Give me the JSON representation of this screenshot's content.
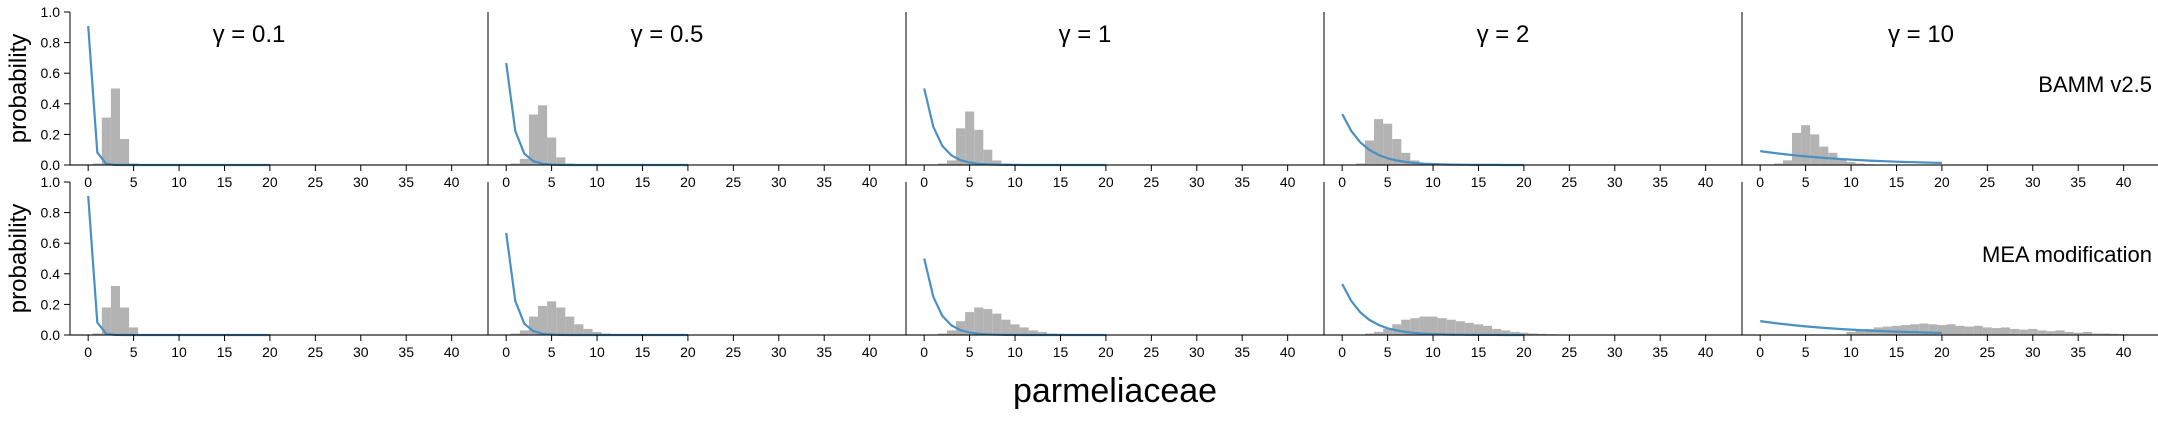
{
  "chart_data": {
    "type": "bar",
    "xlabel": "parmeliaceae",
    "ylabel": "probability",
    "xlim": [
      -2,
      44
    ],
    "ylim": [
      0,
      1
    ],
    "x_ticks": [
      0,
      5,
      10,
      15,
      20,
      25,
      30,
      35,
      40
    ],
    "y_ticks": [
      "0.0",
      "0.2",
      "0.4",
      "0.6",
      "0.8",
      "1.0"
    ],
    "columns": [
      {
        "label": "γ = 0.1",
        "gamma": 0.1
      },
      {
        "label": "γ = 0.5",
        "gamma": 0.5
      },
      {
        "label": "γ = 1",
        "gamma": 1
      },
      {
        "label": "γ = 2",
        "gamma": 2
      },
      {
        "label": "γ = 10",
        "gamma": 10
      }
    ],
    "rows": [
      {
        "label": "BAMM v2.5",
        "histograms": [
          {
            "x": [
              1,
              2,
              3,
              4,
              5
            ],
            "y": [
              0.01,
              0.31,
              0.5,
              0.17,
              0.01
            ]
          },
          {
            "x": [
              1,
              2,
              3,
              4,
              5,
              6,
              7,
              8
            ],
            "y": [
              0.01,
              0.04,
              0.33,
              0.39,
              0.18,
              0.05,
              0.01,
              0.005
            ]
          },
          {
            "x": [
              2,
              3,
              4,
              5,
              6,
              7,
              8,
              9,
              10
            ],
            "y": [
              0.01,
              0.03,
              0.24,
              0.35,
              0.23,
              0.1,
              0.03,
              0.01,
              0.005
            ]
          },
          {
            "x": [
              2,
              3,
              4,
              5,
              6,
              7,
              8,
              9,
              10,
              11
            ],
            "y": [
              0.01,
              0.16,
              0.3,
              0.27,
              0.17,
              0.08,
              0.03,
              0.01,
              0.005,
              0.003
            ]
          },
          {
            "x": [
              2,
              3,
              4,
              5,
              6,
              7,
              8,
              9,
              10,
              11,
              12
            ],
            "y": [
              0.01,
              0.03,
              0.21,
              0.26,
              0.2,
              0.12,
              0.08,
              0.04,
              0.02,
              0.01,
              0.005
            ]
          }
        ]
      },
      {
        "label": "MEA modification",
        "histograms": [
          {
            "x": [
              1,
              2,
              3,
              4,
              5
            ],
            "y": [
              0.01,
              0.18,
              0.32,
              0.18,
              0.05
            ]
          },
          {
            "x": [
              1,
              2,
              3,
              4,
              5,
              6,
              7,
              8,
              9,
              10,
              11,
              12,
              13
            ],
            "y": [
              0.01,
              0.03,
              0.12,
              0.19,
              0.22,
              0.18,
              0.12,
              0.07,
              0.04,
              0.02,
              0.01,
              0.005,
              0.003
            ]
          },
          {
            "x": [
              2,
              3,
              4,
              5,
              6,
              7,
              8,
              9,
              10,
              11,
              12,
              13,
              14,
              15,
              16,
              17
            ],
            "y": [
              0.01,
              0.03,
              0.09,
              0.15,
              0.18,
              0.17,
              0.14,
              0.1,
              0.07,
              0.05,
              0.03,
              0.02,
              0.01,
              0.008,
              0.005,
              0.003
            ]
          },
          {
            "x": [
              3,
              4,
              5,
              6,
              7,
              8,
              9,
              10,
              11,
              12,
              13,
              14,
              15,
              16,
              17,
              18,
              19,
              20,
              21,
              22,
              23,
              24
            ],
            "y": [
              0.01,
              0.02,
              0.04,
              0.07,
              0.1,
              0.11,
              0.12,
              0.12,
              0.11,
              0.1,
              0.09,
              0.08,
              0.07,
              0.06,
              0.04,
              0.03,
              0.02,
              0.015,
              0.01,
              0.008,
              0.005,
              0.003
            ]
          },
          {
            "x": [
              10,
              11,
              12,
              13,
              14,
              15,
              16,
              17,
              18,
              19,
              20,
              21,
              22,
              23,
              24,
              25,
              26,
              27,
              28,
              29,
              30,
              31,
              32,
              33,
              34,
              35,
              36,
              37,
              38,
              39,
              40
            ],
            "y": [
              0.02,
              0.03,
              0.04,
              0.05,
              0.055,
              0.06,
              0.065,
              0.07,
              0.075,
              0.07,
              0.065,
              0.07,
              0.06,
              0.055,
              0.06,
              0.05,
              0.045,
              0.05,
              0.04,
              0.035,
              0.04,
              0.03,
              0.025,
              0.03,
              0.02,
              0.015,
              0.02,
              0.01,
              0.01,
              0.008,
              0.005
            ]
          }
        ]
      }
    ],
    "prior_curve": {
      "x": [
        0,
        1,
        2,
        3,
        4,
        5,
        6,
        7,
        8,
        9,
        10,
        11,
        12,
        13,
        14,
        15,
        16,
        17,
        18,
        19,
        20
      ]
    }
  },
  "colors": {
    "histogram": "#b3b3b3",
    "prior": "#4a90c2",
    "axis": "#000000",
    "baseline": "#9a9a9a"
  }
}
